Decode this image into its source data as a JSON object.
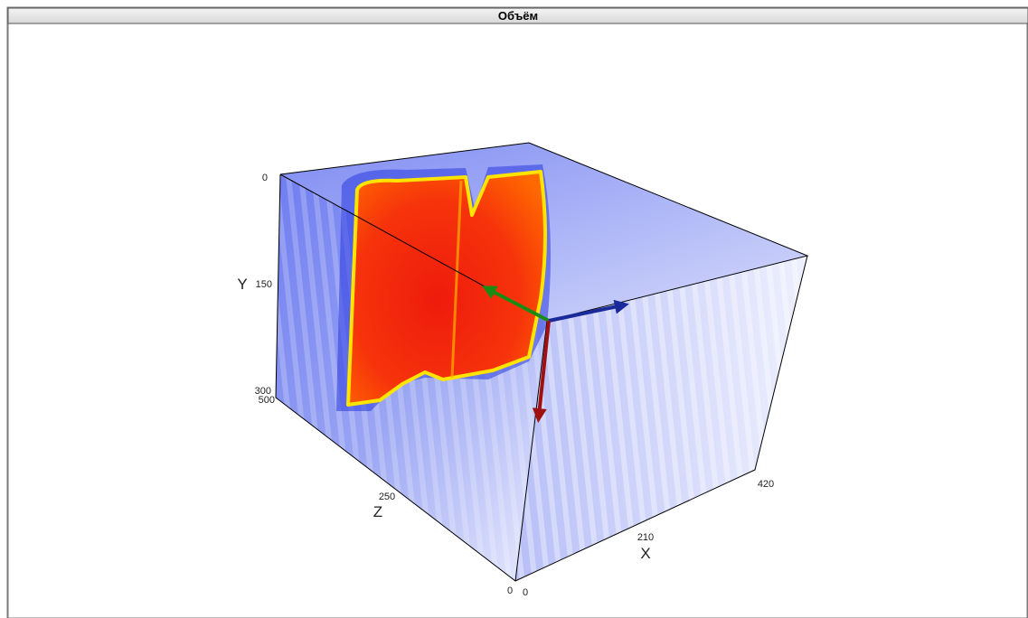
{
  "window": {
    "title": "Объём"
  },
  "axes": {
    "x": {
      "label": "X",
      "ticks": [
        0,
        210,
        420
      ]
    },
    "y": {
      "label": "Y",
      "ticks": [
        0,
        150,
        300
      ]
    },
    "z": {
      "label": "Z",
      "ticks": [
        500,
        250,
        0
      ]
    }
  }
}
